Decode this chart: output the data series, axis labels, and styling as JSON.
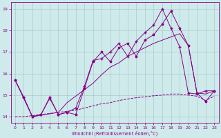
{
  "xlabel": "Windchill (Refroidissement éolien,°C)",
  "background_color": "#ceeaea",
  "grid_color": "#aacccc",
  "line_color": "#880088",
  "xlim": [
    -0.5,
    23.5
  ],
  "ylim": [
    13.7,
    19.3
  ],
  "yticks": [
    14,
    15,
    16,
    17,
    18,
    19
  ],
  "xticks": [
    0,
    1,
    2,
    3,
    4,
    5,
    6,
    7,
    8,
    9,
    10,
    11,
    12,
    13,
    14,
    15,
    16,
    17,
    18,
    19,
    20,
    21,
    22,
    23
  ],
  "line1_x": [
    0,
    1,
    2,
    3,
    4,
    5,
    6,
    7,
    8,
    9,
    10,
    11,
    12,
    13,
    14,
    15,
    16,
    17,
    18,
    19,
    20,
    21,
    22,
    23
  ],
  "line1_y": [
    15.7,
    14.9,
    14.0,
    14.1,
    14.9,
    14.1,
    14.2,
    14.1,
    15.3,
    16.55,
    17.0,
    16.55,
    17.2,
    17.4,
    16.8,
    17.55,
    17.8,
    18.3,
    18.9,
    18.1,
    17.3,
    15.1,
    14.7,
    15.2
  ],
  "line2_x": [
    0,
    1,
    2,
    3,
    4,
    5,
    6,
    7,
    8,
    9,
    10,
    11,
    12,
    13,
    14,
    15,
    16,
    17,
    18,
    19,
    20,
    21,
    22,
    23
  ],
  "line2_y": [
    15.7,
    14.9,
    14.0,
    14.1,
    14.85,
    14.1,
    14.2,
    14.4,
    15.4,
    16.6,
    16.7,
    17.0,
    17.4,
    16.8,
    17.5,
    17.9,
    18.25,
    19.0,
    18.1,
    17.25,
    15.1,
    15.05,
    15.2,
    15.2
  ],
  "line3_x": [
    0,
    2,
    5,
    6,
    9,
    10,
    11,
    12,
    13,
    14,
    15,
    16,
    17,
    18,
    19,
    20,
    21,
    22,
    23
  ],
  "line3_y": [
    15.7,
    14.0,
    14.2,
    14.65,
    15.55,
    15.95,
    16.3,
    16.5,
    16.8,
    17.0,
    17.2,
    17.4,
    17.55,
    17.7,
    17.85,
    17.3,
    15.1,
    15.05,
    15.2
  ],
  "line4_x": [
    0,
    1,
    2,
    3,
    4,
    5,
    6,
    7,
    8,
    9,
    10,
    11,
    12,
    13,
    14,
    15,
    16,
    17,
    18,
    19,
    20,
    21,
    22,
    23
  ],
  "line4_y": [
    14.0,
    14.0,
    14.05,
    14.1,
    14.15,
    14.2,
    14.25,
    14.3,
    14.4,
    14.5,
    14.6,
    14.65,
    14.75,
    14.82,
    14.88,
    14.92,
    14.97,
    15.0,
    15.05,
    15.05,
    15.0,
    14.95,
    14.75,
    14.95
  ]
}
